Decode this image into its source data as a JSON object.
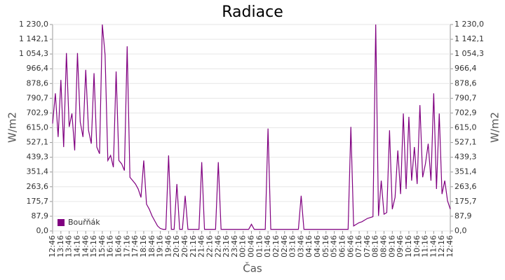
{
  "chart_data": {
    "type": "line",
    "title": "Radiace",
    "x_label": "Čas",
    "y_label": "W/m2",
    "categories": [
      "12:46",
      null,
      null,
      "13:16",
      null,
      null,
      "13:46",
      null,
      null,
      "14:16",
      null,
      null,
      "14:46",
      null,
      null,
      "15:16",
      null,
      null,
      "15:46",
      null,
      null,
      "16:16",
      null,
      null,
      "16:46",
      null,
      null,
      "17:16",
      null,
      null,
      "17:46",
      null,
      null,
      "18:16",
      null,
      null,
      "18:46",
      null,
      null,
      "19:16",
      null,
      null,
      "19:46",
      null,
      null,
      "20:16",
      null,
      null,
      "20:46",
      null,
      null,
      "21:16",
      null,
      null,
      "21:46",
      null,
      null,
      "22:16",
      null,
      null,
      "22:46",
      null,
      null,
      "23:16",
      null,
      null,
      "23:46",
      null,
      null,
      "00:16",
      null,
      null,
      "00:46",
      null,
      null,
      "01:16",
      null,
      null,
      "01:46",
      null,
      null,
      "02:16",
      null,
      null,
      "02:46",
      null,
      null,
      "03:16",
      null,
      null,
      "03:46",
      null,
      null,
      "04:16",
      null,
      null,
      "04:46",
      null,
      null,
      "05:16",
      null,
      null,
      "05:46",
      null,
      null,
      "06:16",
      null,
      null,
      "06:46",
      null,
      null,
      "07:16",
      null,
      null,
      "07:46",
      null,
      null,
      "08:16",
      null,
      null,
      "08:46",
      null,
      null,
      "09:16",
      null,
      null,
      "09:46",
      null,
      null,
      "10:16",
      null,
      null,
      "10:46",
      null,
      null,
      "11:16",
      null,
      null,
      "11:46",
      null,
      null,
      "12:16",
      null,
      null,
      "12:46"
    ],
    "series": [
      {
        "name": "Bouřňák",
        "color": "#800080",
        "values": [
          640,
          820,
          560,
          900,
          500,
          1060,
          620,
          700,
          480,
          1060,
          650,
          560,
          960,
          600,
          520,
          940,
          500,
          460,
          1230,
          1050,
          420,
          450,
          380,
          950,
          420,
          400,
          360,
          1100,
          320,
          300,
          280,
          250,
          200,
          420,
          160,
          130,
          90,
          60,
          30,
          15,
          10,
          10,
          450,
          10,
          10,
          280,
          10,
          10,
          210,
          10,
          10,
          10,
          10,
          10,
          410,
          10,
          10,
          10,
          10,
          10,
          410,
          10,
          10,
          10,
          10,
          10,
          10,
          10,
          10,
          10,
          10,
          10,
          40,
          10,
          10,
          10,
          10,
          10,
          610,
          10,
          10,
          10,
          10,
          10,
          10,
          10,
          10,
          10,
          10,
          10,
          210,
          10,
          10,
          10,
          10,
          10,
          10,
          10,
          10,
          10,
          10,
          10,
          10,
          10,
          10,
          10,
          10,
          10,
          620,
          30,
          40,
          50,
          55,
          65,
          75,
          80,
          85,
          1230,
          90,
          300,
          100,
          110,
          600,
          130,
          200,
          480,
          220,
          700,
          250,
          680,
          300,
          500,
          280,
          750,
          320,
          400,
          520,
          300,
          820,
          250,
          700,
          220,
          300,
          180,
          130
        ]
      }
    ],
    "ylim": [
      0,
      1230
    ],
    "yticks": [
      {
        "value": 0,
        "label": "0,0"
      },
      {
        "value": 87.9,
        "label": "87,9"
      },
      {
        "value": 175.7,
        "label": "175,7"
      },
      {
        "value": 263.6,
        "label": "263,6"
      },
      {
        "value": 351.4,
        "label": "351,4"
      },
      {
        "value": 439.3,
        "label": "439,3"
      },
      {
        "value": 527.1,
        "label": "527,1"
      },
      {
        "value": 615,
        "label": "615,0"
      },
      {
        "value": 702.9,
        "label": "702,9"
      },
      {
        "value": 790.7,
        "label": "790,7"
      },
      {
        "value": 878.6,
        "label": "878,6"
      },
      {
        "value": 966.4,
        "label": "966,4"
      },
      {
        "value": 1054.3,
        "label": "1 054,3"
      },
      {
        "value": 1142.1,
        "label": "1 142,1"
      },
      {
        "value": 1230,
        "label": "1 230,0"
      }
    ],
    "grid": true,
    "legend": "lower left"
  }
}
